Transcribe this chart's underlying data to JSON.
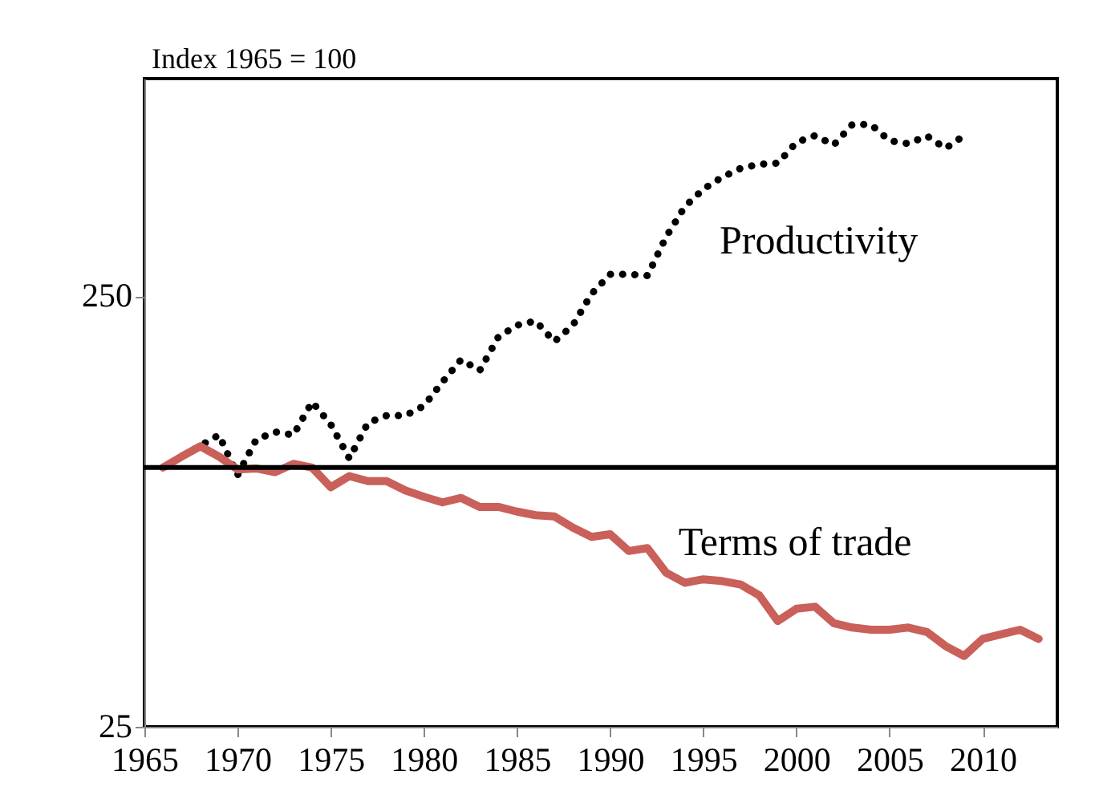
{
  "chart_data": {
    "type": "line",
    "ylabel": "Index 1965 = 100",
    "log": true,
    "grid": false,
    "legend": false,
    "marker": "none",
    "xlim": [
      1965,
      2014
    ],
    "xticks": [
      1965,
      1970,
      1975,
      1980,
      1985,
      1990,
      1995,
      2000,
      2005,
      2010
    ],
    "ylim": [
      25,
      800
    ],
    "yticks": [
      25,
      250
    ],
    "ref_lines": [
      {
        "axis": "y",
        "value": 100,
        "color": "#000000",
        "line_style": "solid"
      }
    ],
    "series": [
      {
        "name": "Productivity",
        "color": "#000000",
        "line_style": "dotted",
        "x": [
          1966,
          1969,
          1970,
          1971,
          1972,
          1973,
          1974,
          1975,
          1976,
          1977,
          1978,
          1979,
          1980,
          1981,
          1982,
          1983,
          1984,
          1985,
          1986,
          1987,
          1988,
          1989,
          1990,
          1991,
          1992,
          1993,
          1994,
          1995,
          1996,
          1997,
          1998,
          1999,
          2000,
          2001,
          2002,
          2003,
          2004,
          2005,
          2006,
          2007,
          2008,
          2009
        ],
        "values": [
          100,
          119,
          96,
          116,
          121,
          119,
          142,
          126,
          105,
          127,
          132,
          132,
          139,
          158,
          178,
          168,
          201,
          214,
          219,
          196,
          214,
          253,
          281,
          281,
          279,
          343,
          403,
          443,
          472,
          495,
          506,
          509,
          569,
          590,
          561,
          626,
          626,
          574,
          565,
          589,
          551,
          590
        ]
      },
      {
        "name": "Terms of trade",
        "color": "#c9605a",
        "line_style": "solid",
        "x": [
          1966,
          1967,
          1968,
          1969,
          1970,
          1971,
          1972,
          1973,
          1974,
          1975,
          1976,
          1977,
          1978,
          1979,
          1980,
          1981,
          1982,
          1983,
          1984,
          1985,
          1986,
          1987,
          1988,
          1989,
          1990,
          1991,
          1992,
          1993,
          1994,
          1995,
          1996,
          1997,
          1998,
          1999,
          2000,
          2001,
          2002,
          2003,
          2004,
          2005,
          2006,
          2007,
          2008,
          2009,
          2010,
          2011,
          2012,
          2013
        ],
        "values": [
          100,
          106,
          112,
          106,
          99,
          99.5,
          97.5,
          102,
          100,
          90,
          95.5,
          93,
          93,
          88.5,
          85.5,
          83,
          85,
          81,
          81,
          79,
          77.5,
          77,
          72.5,
          69,
          70,
          64,
          65,
          57,
          54,
          55,
          54.5,
          53.5,
          50.5,
          44,
          47,
          47.5,
          43.5,
          42.5,
          42,
          42,
          42.5,
          41.5,
          38.5,
          36.5,
          40,
          41,
          42,
          40
        ]
      }
    ]
  }
}
